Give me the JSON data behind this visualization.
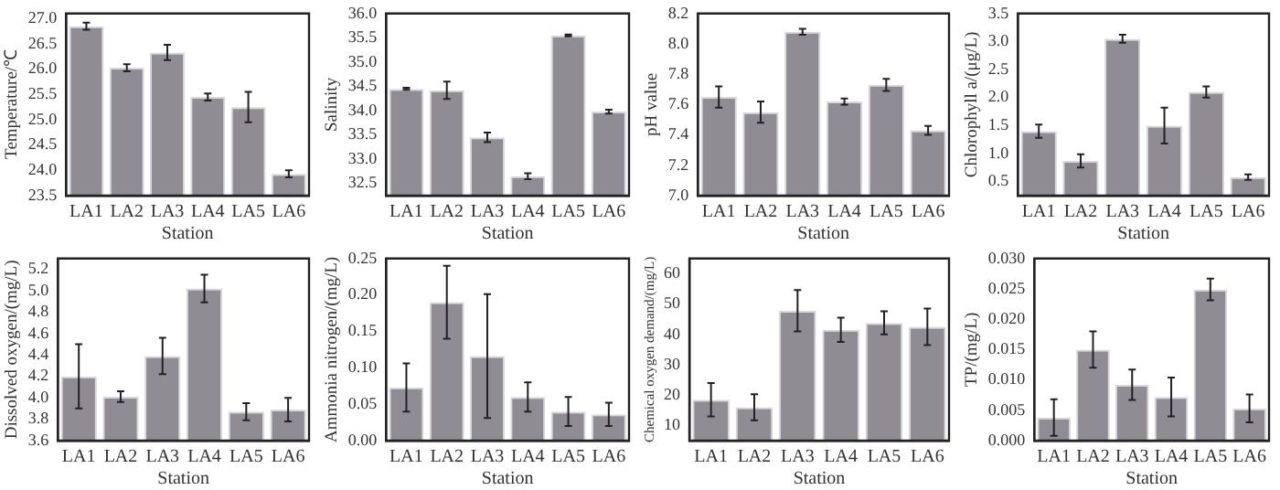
{
  "chart_data": [
    {
      "type": "bar",
      "categories": [
        "LA1",
        "LA2",
        "LA3",
        "LA4",
        "LA5",
        "LA6"
      ],
      "xlabel": "Station",
      "ylabel": "Temperature/℃",
      "color": "#8f8d93",
      "values": [
        26.85,
        26.03,
        26.33,
        25.45,
        25.25,
        23.93
      ],
      "errors": [
        0.07,
        0.07,
        0.15,
        0.07,
        0.3,
        0.07
      ],
      "ylim": [
        23.5,
        27.1
      ],
      "yticks": [
        23.5,
        {
          "value": 24,
          "label": "24.0"
        },
        24.5,
        {
          "value": 25,
          "label": "25.0"
        },
        25.5,
        {
          "value": 26,
          "label": "26.0"
        },
        26.5,
        {
          "value": 27,
          "label": "27.0"
        }
      ],
      "grid": false
    },
    {
      "type": "bar",
      "categories": [
        "LA1",
        "LA2",
        "LA3",
        "LA4",
        "LA5",
        "LA6"
      ],
      "xlabel": "Station",
      "ylabel": "Salinity",
      "color": "#8f8d93",
      "values": [
        34.45,
        34.42,
        33.45,
        32.65,
        35.55,
        33.98
      ],
      "errors": [
        0.02,
        0.18,
        0.1,
        0.06,
        0.02,
        0.04
      ],
      "ylim": [
        32.25,
        36
      ],
      "yticks": [
        32.5,
        {
          "value": 33,
          "label": "33.0"
        },
        33.5,
        {
          "value": 34,
          "label": "34.0"
        },
        34.5,
        {
          "value": 35,
          "label": "35.0"
        },
        35.5,
        {
          "value": 36,
          "label": "36.0"
        }
      ],
      "grid": false
    },
    {
      "type": "bar",
      "categories": [
        "LA1",
        "LA2",
        "LA3",
        "LA4",
        "LA5",
        "LA6"
      ],
      "xlabel": "Station",
      "ylabel": "pH value",
      "color": "#8f8d93",
      "values": [
        7.65,
        7.55,
        8.08,
        7.62,
        7.73,
        7.43
      ],
      "errors": [
        0.07,
        0.07,
        0.02,
        0.02,
        0.04,
        0.03
      ],
      "ylim": [
        7,
        8.2
      ],
      "yticks": [
        {
          "value": 7,
          "label": "7.0"
        },
        7.2,
        7.4,
        7.6,
        7.8,
        {
          "value": 8,
          "label": "8.0"
        },
        8.2
      ],
      "grid": false
    },
    {
      "type": "bar",
      "categories": [
        "LA1",
        "LA2",
        "LA3",
        "LA4",
        "LA5",
        "LA6"
      ],
      "xlabel": "Station",
      "ylabel": "Chlorophyll a/(μg/L)",
      "color": "#8f8d93",
      "values": [
        1.4,
        0.87,
        3.05,
        1.5,
        2.1,
        0.58
      ],
      "errors": [
        0.12,
        0.12,
        0.07,
        0.32,
        0.1,
        0.05
      ],
      "ylim": [
        0.25,
        3.5
      ],
      "yticks": [
        0.5,
        {
          "value": 1,
          "label": "1.0"
        },
        1.5,
        {
          "value": 2,
          "label": "2.0"
        },
        2.5,
        {
          "value": 3,
          "label": "3.0"
        },
        3.5
      ],
      "grid": false
    },
    {
      "type": "bar",
      "categories": [
        "LA1",
        "LA2",
        "LA3",
        "LA4",
        "LA5",
        "LA6"
      ],
      "xlabel": "Station",
      "ylabel": "Dissolved oxygen/(mg/L)",
      "color": "#8f8d93",
      "values": [
        4.2,
        4.01,
        4.39,
        5.02,
        3.87,
        3.89
      ],
      "errors": [
        0.3,
        0.05,
        0.17,
        0.13,
        0.08,
        0.11
      ],
      "ylim": [
        3.6,
        5.3
      ],
      "yticks": [
        3.6,
        3.8,
        {
          "value": 4,
          "label": "4.0"
        },
        4.2,
        4.4,
        4.6,
        4.8,
        {
          "value": 5,
          "label": "5.0"
        },
        5.2
      ],
      "grid": false
    },
    {
      "type": "bar",
      "categories": [
        "LA1",
        "LA2",
        "LA3",
        "LA4",
        "LA5",
        "LA6"
      ],
      "xlabel": "Station",
      "ylabel": "Ammonia nitrogen/(mg/L)",
      "color": "#8f8d93",
      "values": [
        0.073,
        0.19,
        0.116,
        0.06,
        0.04,
        0.036
      ],
      "errors": [
        0.033,
        0.05,
        0.085,
        0.02,
        0.02,
        0.016
      ],
      "ylim": [
        0,
        0.25
      ],
      "yticks": [
        {
          "value": 0,
          "label": "0.00"
        },
        0.05,
        {
          "value": 0.1,
          "label": "0.10"
        },
        0.15,
        {
          "value": 0.2,
          "label": "0.20"
        },
        0.25
      ],
      "grid": false
    },
    {
      "type": "bar",
      "categories": [
        "LA1",
        "LA2",
        "LA3",
        "LA4",
        "LA5",
        "LA6"
      ],
      "xlabel": "Station",
      "ylabel": "Chemical oxygen demand/(mg/L)",
      "color": "#8f8d93",
      "values": [
        18.5,
        16,
        47.8,
        41.5,
        43.8,
        42.5
      ],
      "errors": [
        5.5,
        4.3,
        6.8,
        4,
        3.8,
        6
      ],
      "ylim": [
        5,
        65
      ],
      "yticks": [
        10,
        20,
        30,
        40,
        50,
        60
      ],
      "grid": false
    },
    {
      "type": "bar",
      "categories": [
        "LA1",
        "LA2",
        "LA3",
        "LA4",
        "LA5",
        "LA6"
      ],
      "xlabel": "Station",
      "ylabel": "TP/(mg/L)",
      "color": "#8f8d93",
      "values": [
        0.0038,
        0.015,
        0.0092,
        0.0072,
        0.0249,
        0.0053
      ],
      "errors": [
        0.003,
        0.003,
        0.0025,
        0.0032,
        0.0018,
        0.0023
      ],
      "ylim": [
        0,
        0.03
      ],
      "yticks": [
        {
          "value": 0,
          "label": "0.000"
        },
        {
          "value": 0.005,
          "label": "0.005"
        },
        {
          "value": 0.01,
          "label": "0.010"
        },
        {
          "value": 0.015,
          "label": "0.015"
        },
        {
          "value": 0.02,
          "label": "0.020"
        },
        {
          "value": 0.025,
          "label": "0.025"
        },
        {
          "value": 0.03,
          "label": "0.030"
        }
      ],
      "grid": false
    }
  ]
}
